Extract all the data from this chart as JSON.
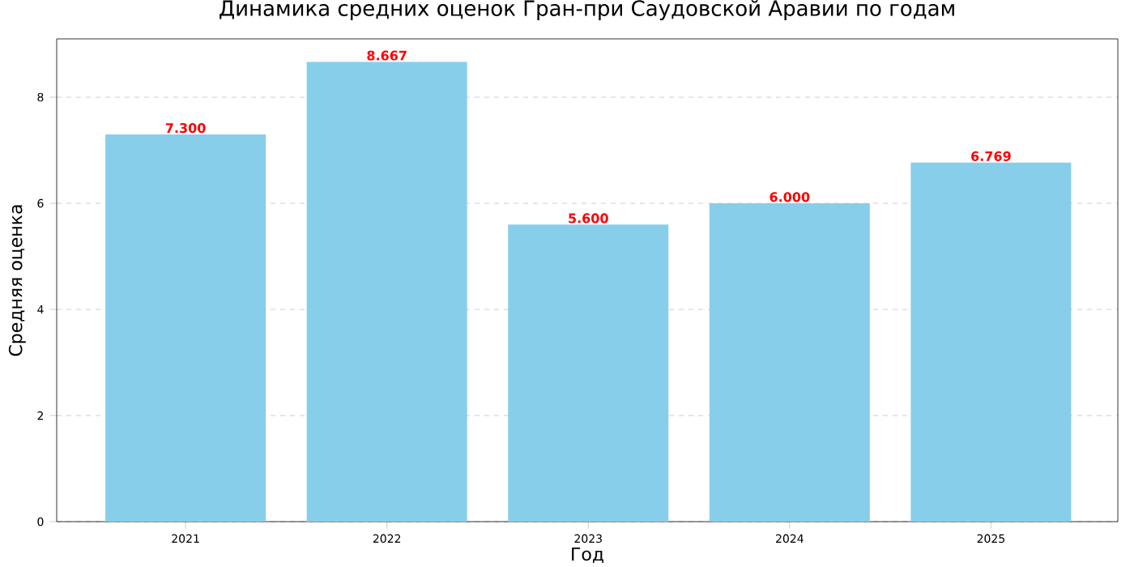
{
  "chart_data": {
    "type": "bar",
    "title": "Динамика средних оценок Гран-при Саудовской Аравии по годам",
    "xlabel": "Год",
    "ylabel": "Средняя оценка",
    "categories": [
      "2021",
      "2022",
      "2023",
      "2024",
      "2025"
    ],
    "values": [
      7.3,
      8.667,
      5.6,
      6.0,
      6.769
    ],
    "value_labels": [
      "7.300",
      "8.667",
      "5.600",
      "6.000",
      "6.769"
    ],
    "color": "#87ceeb",
    "ylim": [
      0,
      9.1
    ],
    "yticks": [
      0,
      2,
      4,
      6,
      8
    ],
    "grid": "y"
  }
}
